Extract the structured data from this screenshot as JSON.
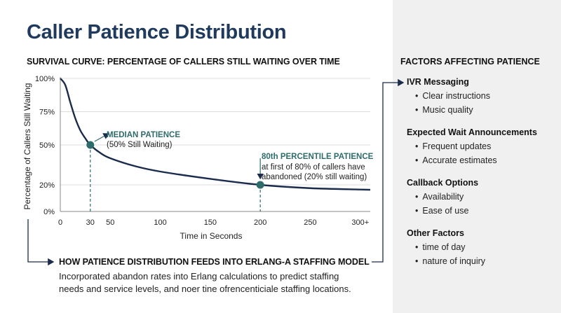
{
  "title": "Caller Patience Distribution",
  "chart_heading": "SURVIVAL CURVE: PERCENTAGE OF CALLERS STILL WAITING OVER TIME",
  "factors_heading": "FACTORS AFFECTING PATIENCE",
  "chart_data": {
    "type": "line",
    "xlabel": "Time in Seconds",
    "ylabel": "Percentage of Callers Still Waiting",
    "x_ticks": [
      {
        "value": 0,
        "label": "0"
      },
      {
        "value": 30,
        "label": "30"
      },
      {
        "value": 50,
        "label": "50"
      },
      {
        "value": 100,
        "label": "100"
      },
      {
        "value": 150,
        "label": "150"
      },
      {
        "value": 200,
        "label": "200"
      },
      {
        "value": 250,
        "label": "250"
      },
      {
        "value": 300,
        "label": "300+"
      }
    ],
    "y_ticks": [
      {
        "value": 0,
        "label": "0%"
      },
      {
        "value": 20,
        "label": "20%"
      },
      {
        "value": 50,
        "label": "50%"
      },
      {
        "value": 75,
        "label": "75%"
      },
      {
        "value": 100,
        "label": "100%"
      }
    ],
    "xlim": [
      0,
      310
    ],
    "ylim": [
      0,
      100
    ],
    "series": [
      {
        "color": "#1a2b4c",
        "points": [
          [
            0,
            100
          ],
          [
            5,
            95
          ],
          [
            10,
            82
          ],
          [
            15,
            70
          ],
          [
            20,
            61
          ],
          [
            25,
            55
          ],
          [
            30,
            50
          ],
          [
            40,
            44
          ],
          [
            50,
            40
          ],
          [
            75,
            34
          ],
          [
            100,
            30
          ],
          [
            150,
            24.5
          ],
          [
            200,
            20
          ],
          [
            250,
            17.5
          ],
          [
            300,
            16.5
          ],
          [
            310,
            16.3
          ]
        ]
      }
    ],
    "annotations": [
      {
        "x": 30,
        "y": 50,
        "title": "MEDIAN PATIENCE",
        "text": "(50% Still Waiting)"
      },
      {
        "x": 200,
        "y": 20,
        "title": "80th PERCENTILE PATIENCE",
        "text_line1": "at first of 80% of callers have",
        "text_line2": "abandoned (20% still waiting)"
      }
    ],
    "accent_color": "#2e6b6b",
    "grid": "horizontal"
  },
  "factors": [
    {
      "label": "IVR Messaging",
      "items": [
        "Clear instructions",
        "Music quality"
      ]
    },
    {
      "label": "Expected Wait Announcements",
      "items": [
        "Frequent updates",
        "Accurate estimates"
      ]
    },
    {
      "label": "Callback Options",
      "items": [
        "Availability",
        "Ease of use"
      ]
    },
    {
      "label": "Other Factors",
      "items": [
        "time of day",
        "nature of inquiry"
      ]
    }
  ],
  "erlang": {
    "heading": "HOW PATIENCE DISTRIBUTION FEEDS INTO ERLANG-A STAFFING MODEL",
    "desc_line1": "Incorporated abandon rates into Erlang calculations to predict staffing",
    "desc_line2": "needs and service levels, and noer tine ofrencenticiale staffing locations."
  }
}
